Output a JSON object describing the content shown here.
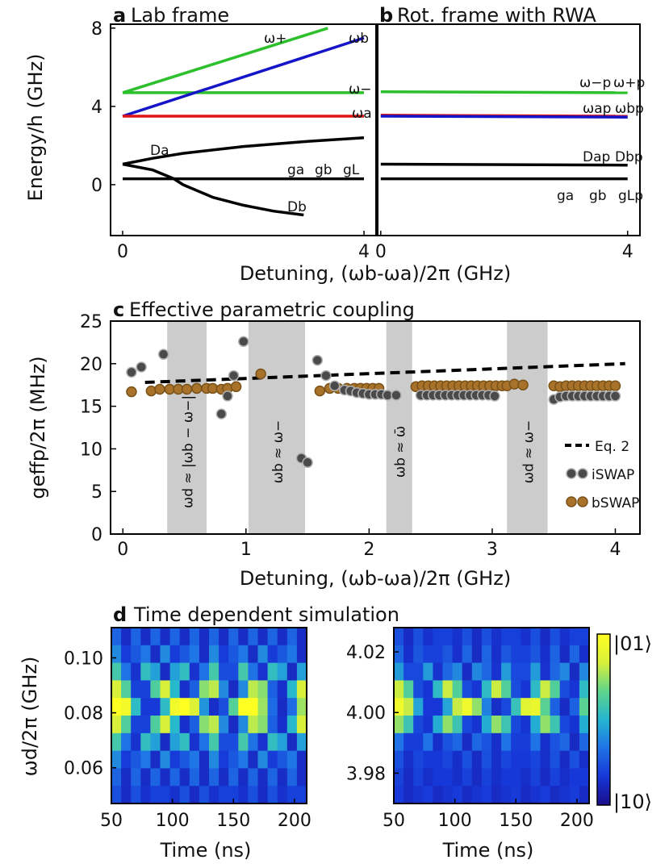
{
  "colors": {
    "green": "#2cc02c",
    "blue": "#1414c8",
    "red": "#e01414",
    "black": "#000000",
    "shade": "#cccccc",
    "iswap_fill": "#4a4a4a",
    "bswap_fill": "#a8722a",
    "colormap": [
      "#1c0c8a",
      "#1637d8",
      "#1f72e6",
      "#25b6d0",
      "#5fd58a",
      "#d8f03a",
      "#ffff22"
    ]
  },
  "panel_a": {
    "letter": "a",
    "title": "Lab frame",
    "ylabel": "Energy/h (GHz)",
    "xticks": [
      "0",
      "4"
    ],
    "yticks": [
      "0",
      "4",
      "8"
    ],
    "labels": {
      "w_plus": "ω+",
      "w_b": "ωb",
      "w_minus": "ω−",
      "w_a": "ωa",
      "D_a": "Da",
      "D_b": "Db",
      "g_a": "ga",
      "g_b": "gb",
      "g_L": "gL"
    }
  },
  "panel_b": {
    "letter": "b",
    "title": "Rot. frame with RWA",
    "xticks": [
      "0",
      "4"
    ],
    "labels": {
      "w_minus_p": "ω−p",
      "w_plus_p": "ω+p",
      "w_a_p": "ωap",
      "w_b_p": "ωbp",
      "D_a_p": "Dap",
      "D_b_p": "Dbp",
      "g_a": "ga",
      "g_b": "gb",
      "g_L_p": "gLp"
    }
  },
  "ab_xlabel": "Detuning, (ωb-ωa)/2π (GHz)",
  "chart_data": [
    {
      "panel": "a",
      "type": "line",
      "title": "Lab frame",
      "xlabel": "Detuning, (ωb-ωa)/2π (GHz)",
      "ylabel": "Energy/h (GHz)",
      "xlim": [
        -0.2,
        4.2
      ],
      "ylim": [
        -2.6,
        8.2
      ],
      "series": [
        {
          "name": "ω+",
          "color": "green",
          "x": [
            0,
            3.4
          ],
          "y": [
            4.7,
            8.0
          ]
        },
        {
          "name": "ω−",
          "color": "green",
          "x": [
            0,
            4.0
          ],
          "y": [
            4.7,
            4.7
          ]
        },
        {
          "name": "ωb",
          "color": "blue",
          "x": [
            0,
            4.0
          ],
          "y": [
            3.5,
            7.5
          ]
        },
        {
          "name": "ωa",
          "color": "red",
          "x": [
            0,
            4.0
          ],
          "y": [
            3.5,
            3.5
          ]
        },
        {
          "name": "Da",
          "color": "black",
          "x": [
            0,
            0.5,
            1,
            2,
            3,
            4.0
          ],
          "y": [
            1.05,
            1.35,
            1.6,
            1.95,
            2.2,
            2.4
          ]
        },
        {
          "name": "Db",
          "color": "black",
          "x": [
            0,
            0.5,
            0.85,
            1.0,
            1.5,
            2.0,
            2.5,
            3.0
          ],
          "y": [
            1.05,
            0.75,
            0.3,
            0.0,
            -0.65,
            -1.05,
            -1.35,
            -1.55
          ]
        },
        {
          "name": "gL",
          "color": "black",
          "x": [
            0,
            4.0
          ],
          "y": [
            0.3,
            0.3
          ]
        }
      ]
    },
    {
      "panel": "b",
      "type": "line",
      "title": "Rot. frame with RWA",
      "xlabel": "Detuning, (ωb-ωa)/2π (GHz)",
      "xlim": [
        -0.05,
        4.2
      ],
      "ylim": [
        -2.6,
        8.2
      ],
      "series": [
        {
          "name": "ω+p / ω−p",
          "color": "green",
          "x": [
            0,
            4.0
          ],
          "y": [
            4.75,
            4.7
          ]
        },
        {
          "name": "ωap",
          "color": "red",
          "x": [
            0,
            4.0
          ],
          "y": [
            3.55,
            3.5
          ]
        },
        {
          "name": "ωbp",
          "color": "blue",
          "x": [
            0,
            4.0
          ],
          "y": [
            3.5,
            3.45
          ]
        },
        {
          "name": "Dap / Dbp",
          "color": "black",
          "x": [
            0,
            4.0
          ],
          "y": [
            1.05,
            1.0
          ]
        },
        {
          "name": "gLp",
          "color": "black",
          "x": [
            0,
            4.0
          ],
          "y": [
            0.3,
            0.3
          ]
        }
      ]
    },
    {
      "panel": "c",
      "type": "scatter",
      "letter": "c",
      "title": "Effective parametric coupling",
      "xlabel": "Detuning, (ωb-ωa)/2π (GHz)",
      "ylabel": "geffp/2π (MHz)",
      "xlim": [
        -0.1,
        4.2
      ],
      "ylim": [
        0,
        25
      ],
      "xticks": [
        "0",
        "1",
        "2",
        "3",
        "4"
      ],
      "yticks": [
        "0",
        "5",
        "10",
        "15",
        "20",
        "25"
      ],
      "shaded_regions": [
        {
          "x": [
            0.36,
            0.68
          ],
          "label": "ωd ≈ |ωb − ω−|"
        },
        {
          "x": [
            1.02,
            1.48
          ],
          "label": "ωb ≈ ω−"
        },
        {
          "x": [
            2.14,
            2.35
          ],
          "label": "ωb ≈ ω̄"
        },
        {
          "x": [
            3.12,
            3.45
          ],
          "label": "ωd ≈ ω−"
        }
      ],
      "legend": [
        "Eq. 2",
        "iSWAP",
        "bSWAP"
      ],
      "series": [
        {
          "name": "Eq. 2",
          "style": "dashed",
          "x": [
            0.18,
            4.08
          ],
          "y": [
            17.8,
            20.0
          ]
        },
        {
          "name": "iSWAP",
          "x": [
            0.07,
            0.15,
            0.33,
            0.8,
            0.85,
            0.9,
            0.98,
            1.45,
            1.5,
            1.58,
            1.65,
            1.72,
            1.8,
            1.85,
            1.9,
            1.95,
            2.0,
            2.05,
            2.1,
            2.15,
            2.22,
            2.42,
            2.47,
            2.52,
            2.57,
            2.62,
            2.67,
            2.72,
            2.77,
            2.82,
            2.87,
            2.92,
            2.97,
            3.02,
            3.5,
            3.55,
            3.6,
            3.65,
            3.7,
            3.75,
            3.8,
            3.85,
            3.9,
            3.95,
            4.0
          ],
          "y": [
            19.0,
            19.6,
            21.1,
            14.1,
            16.2,
            18.6,
            22.6,
            8.9,
            8.4,
            20.4,
            18.6,
            17.4,
            16.9,
            16.8,
            16.6,
            16.5,
            16.4,
            16.4,
            16.4,
            16.3,
            16.3,
            16.3,
            16.3,
            16.3,
            16.3,
            16.3,
            16.3,
            16.3,
            16.3,
            16.3,
            16.3,
            16.3,
            16.3,
            16.2,
            15.8,
            16.1,
            16.2,
            16.2,
            16.2,
            16.2,
            16.2,
            16.2,
            16.2,
            16.2,
            16.2
          ]
        },
        {
          "name": "bSWAP",
          "x": [
            0.07,
            0.23,
            0.3,
            0.38,
            0.45,
            0.52,
            0.6,
            0.68,
            0.73,
            0.8,
            0.85,
            0.92,
            1.12,
            1.6,
            1.68,
            1.75,
            1.82,
            1.88,
            1.93,
            1.98,
            2.03,
            2.08,
            2.38,
            2.43,
            2.48,
            2.53,
            2.58,
            2.63,
            2.68,
            2.73,
            2.78,
            2.83,
            2.88,
            2.93,
            2.98,
            3.03,
            3.08,
            3.12,
            3.18,
            3.25,
            3.5,
            3.55,
            3.6,
            3.65,
            3.7,
            3.75,
            3.8,
            3.85,
            3.9,
            3.95,
            4.0
          ],
          "y": [
            16.7,
            16.8,
            17.0,
            17.0,
            17.0,
            17.0,
            17.1,
            17.1,
            17.1,
            17.0,
            17.1,
            17.3,
            18.8,
            16.8,
            17.1,
            17.1,
            17.1,
            17.1,
            17.1,
            17.1,
            17.1,
            17.1,
            17.3,
            17.4,
            17.4,
            17.4,
            17.4,
            17.4,
            17.4,
            17.4,
            17.4,
            17.4,
            17.4,
            17.4,
            17.4,
            17.4,
            17.4,
            17.4,
            17.6,
            17.5,
            17.4,
            17.3,
            17.4,
            17.4,
            17.4,
            17.4,
            17.4,
            17.4,
            17.4,
            17.4,
            17.4
          ]
        }
      ]
    },
    {
      "panel": "d-left",
      "type": "heatmap",
      "xlabel": "Time (ns)",
      "ylabel": "ωd/2π (GHz)",
      "xlim": [
        50,
        210
      ],
      "ylim": [
        0.047,
        0.111
      ],
      "xticks": [
        "50",
        "100",
        "150",
        "200"
      ],
      "yticks": [
        "0.06",
        "0.08",
        "0.10"
      ],
      "row_centers": [
        0.108,
        0.1,
        0.092,
        0.086,
        0.08,
        0.074,
        0.068,
        0.062,
        0.056,
        0.05
      ],
      "oscillation_periods_ns": [
        16,
        20,
        26,
        38,
        54,
        38,
        26,
        20,
        16,
        14
      ],
      "row_amplitudes": [
        0.18,
        0.28,
        0.48,
        0.72,
        0.98,
        0.72,
        0.48,
        0.28,
        0.18,
        0.12
      ]
    },
    {
      "panel": "d-right",
      "type": "heatmap",
      "xlabel": "Time (ns)",
      "xlim": [
        50,
        210
      ],
      "ylim": [
        3.97,
        4.028
      ],
      "xticks": [
        "50",
        "100",
        "150",
        "200"
      ],
      "yticks": [
        "3.98",
        "4.00",
        "4.02"
      ],
      "row_centers": [
        4.026,
        4.02,
        4.014,
        4.008,
        4.0,
        3.994,
        3.988,
        3.982,
        3.976,
        3.972
      ],
      "oscillation_periods_ns": [
        14,
        18,
        22,
        40,
        54,
        40,
        22,
        18,
        14,
        12
      ],
      "row_amplitudes": [
        0.12,
        0.18,
        0.32,
        0.7,
        0.82,
        0.62,
        0.22,
        0.12,
        0.08,
        0.06
      ]
    }
  ],
  "panel_d": {
    "letter": "d",
    "title": "Time dependent simulation",
    "colorbar_top": "|01⟩",
    "colorbar_bottom": "|10⟩"
  }
}
